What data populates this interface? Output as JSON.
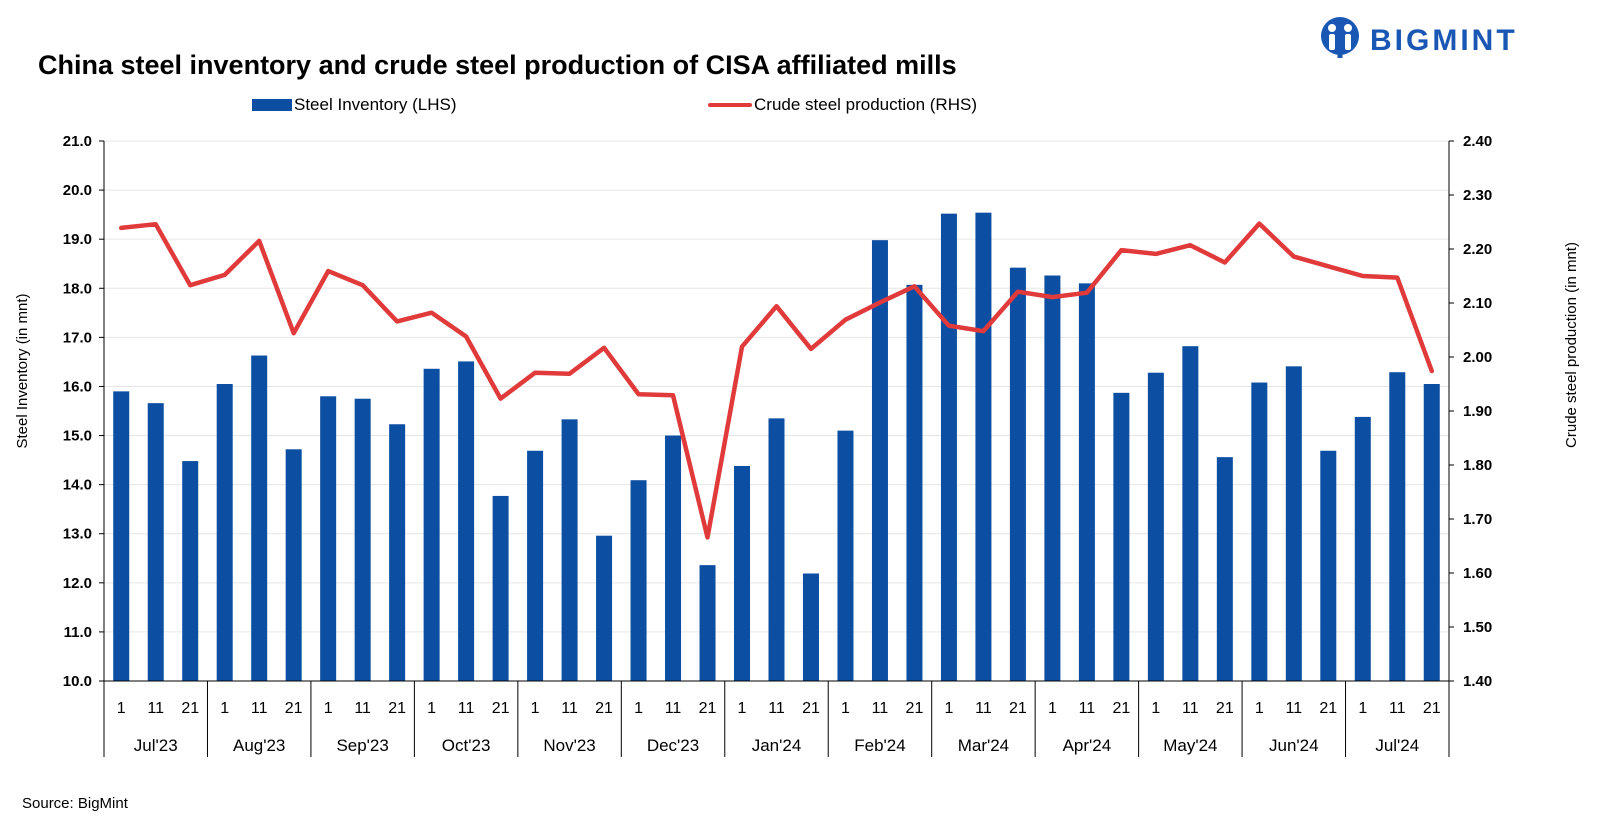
{
  "header": {
    "title": "China steel inventory and crude steel production of CISA affiliated mills",
    "brand": "BIGMINT"
  },
  "footer": {
    "source": "Source: BigMint"
  },
  "colors": {
    "bar": "#0b4ea2",
    "line": "#e03a3a",
    "brand": "#1a57b5",
    "axis": "#000000",
    "grid": "#e6e6e6"
  },
  "chart_data": {
    "type": "bar",
    "title": "China steel inventory and crude steel production of CISA affiliated mills",
    "ylabel": "Steel Inventory (in mnt)",
    "y2label": "Crude steel production (in mnt)",
    "ylim": [
      10.0,
      21.0
    ],
    "y2lim": [
      1.4,
      2.4
    ],
    "yticks": [
      "10.0",
      "11.0",
      "12.0",
      "13.0",
      "14.0",
      "15.0",
      "16.0",
      "17.0",
      "18.0",
      "19.0",
      "20.0",
      "21.0"
    ],
    "y2ticks": [
      "1.40",
      "1.50",
      "1.60",
      "1.70",
      "1.80",
      "1.90",
      "2.00",
      "2.10",
      "2.20",
      "2.30",
      "2.40"
    ],
    "grid": true,
    "legend_position": "top",
    "months": [
      "Jul'23",
      "Aug'23",
      "Sep'23",
      "Oct'23",
      "Nov'23",
      "Dec'23",
      "Jan'24",
      "Feb'24",
      "Mar'24",
      "Apr'24",
      "May'24",
      "Jun'24",
      "Jul'24"
    ],
    "days": [
      "1",
      "11",
      "21"
    ],
    "series": [
      {
        "name": "Steel Inventory (LHS)",
        "type": "bar",
        "axis": "left",
        "values": [
          15.9,
          15.66,
          14.48,
          16.05,
          16.63,
          14.72,
          15.8,
          15.75,
          15.23,
          16.36,
          16.51,
          13.77,
          14.69,
          15.33,
          12.96,
          14.09,
          15.0,
          12.36,
          14.38,
          15.35,
          12.19,
          15.1,
          18.98,
          18.07,
          19.52,
          19.54,
          18.42,
          18.26,
          18.1,
          15.87,
          16.28,
          16.82,
          14.56,
          16.08,
          16.41,
          14.69,
          15.38,
          16.29,
          16.05
        ]
      },
      {
        "name": "Crude steel production (RHS)",
        "type": "line",
        "axis": "right",
        "values": [
          2.239,
          2.246,
          2.133,
          2.152,
          2.215,
          2.044,
          2.159,
          2.133,
          2.066,
          2.082,
          2.038,
          1.923,
          1.971,
          1.969,
          2.017,
          1.931,
          1.929,
          1.666,
          2.019,
          2.094,
          2.015,
          2.069,
          2.101,
          2.131,
          2.058,
          2.048,
          2.121,
          2.111,
          2.119,
          2.198,
          2.191,
          2.207,
          2.175,
          2.247,
          2.186,
          2.168,
          2.15,
          2.147,
          1.974
        ]
      }
    ]
  }
}
